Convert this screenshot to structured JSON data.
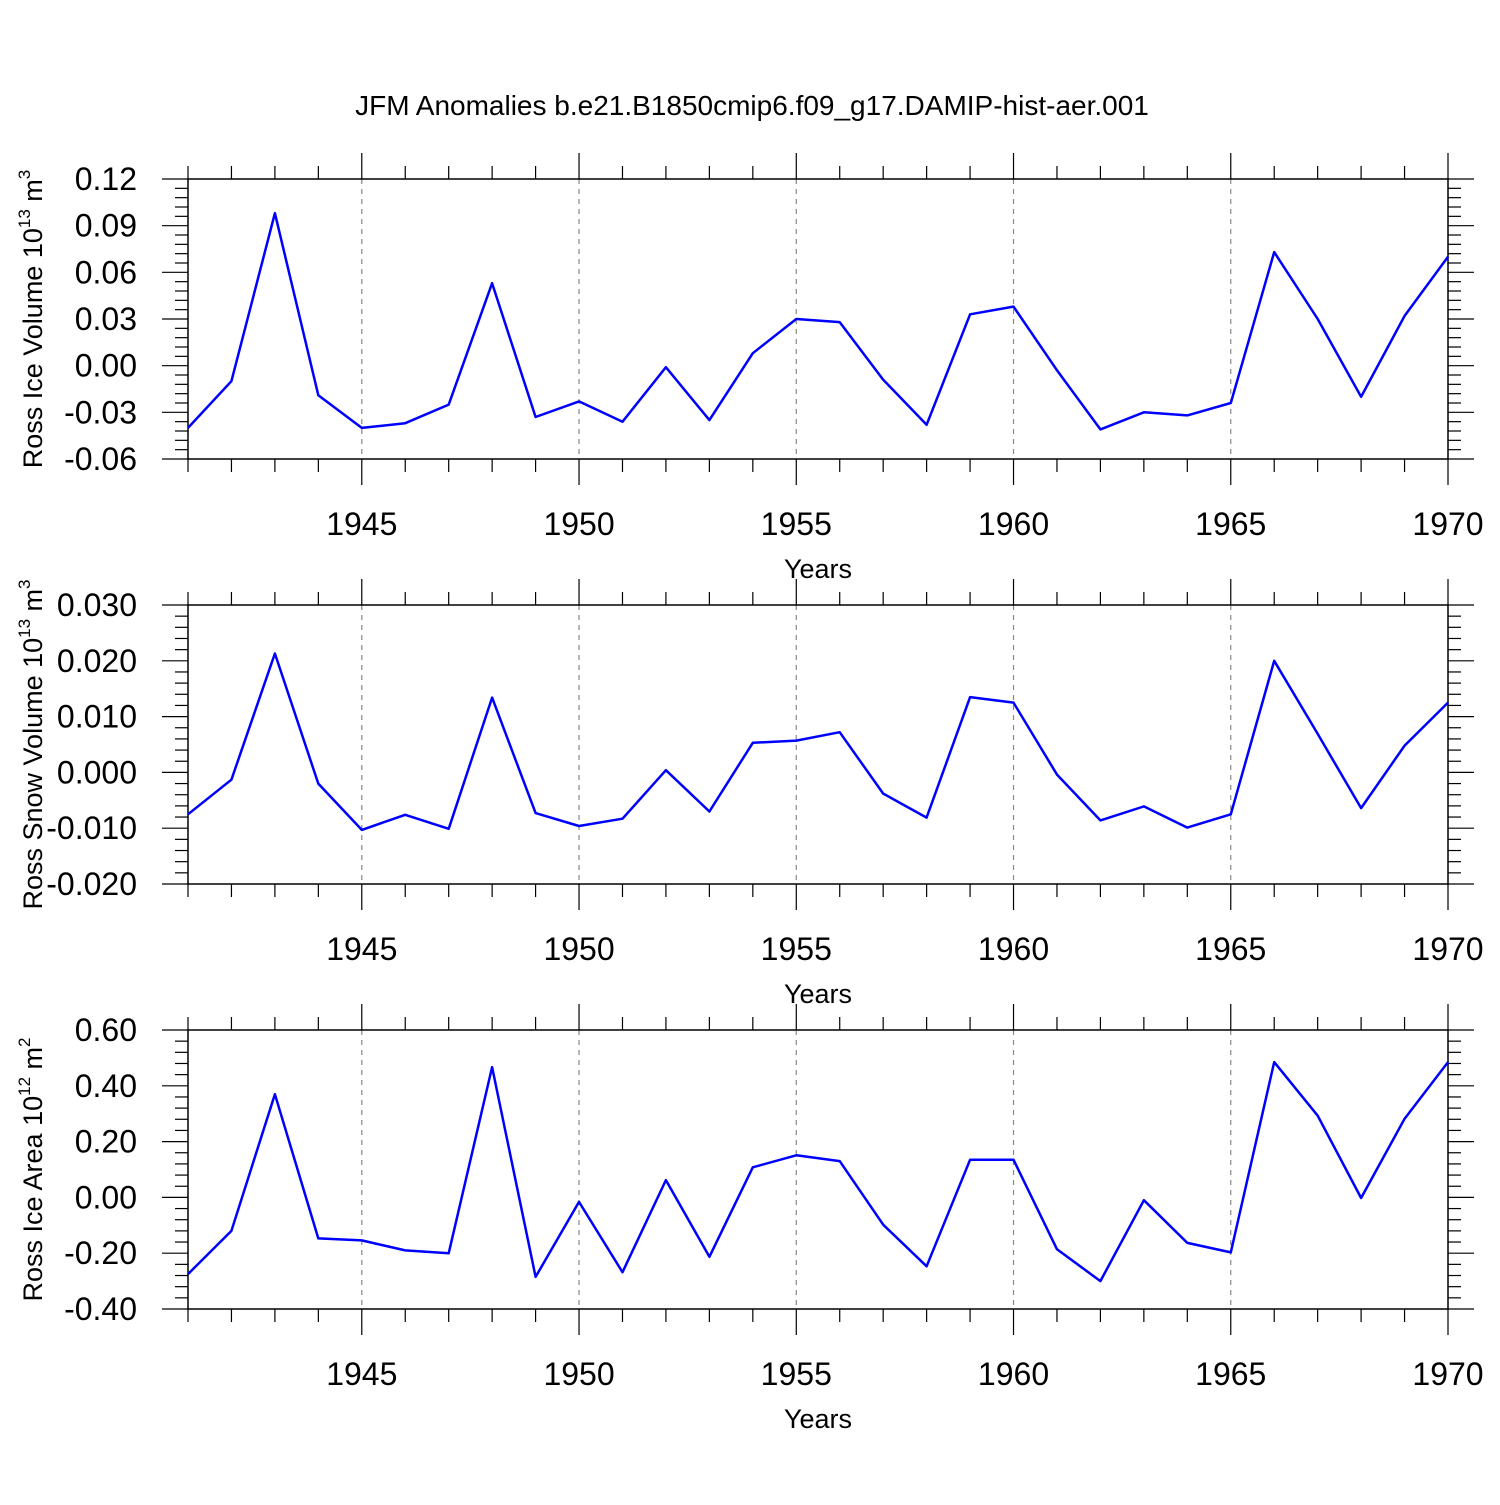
{
  "title": "JFM Anomalies b.e21.B1850cmip6.f09_g17.DAMIP-hist-aer.001",
  "line_color": "#0000ff",
  "chart_data": [
    {
      "type": "line",
      "ylabel": "Ross Ice Volume 10",
      "ylabel_exp": "13",
      "ylabel_unit": "m",
      "ylabel_unit_exp": "3",
      "xlabel": "Years",
      "xlim": [
        1941,
        1970
      ],
      "ylim": [
        -0.06,
        0.12
      ],
      "yticks": [
        -0.06,
        -0.03,
        0.0,
        0.03,
        0.06,
        0.09,
        0.12
      ],
      "ytick_labels": [
        "-0.06",
        "-0.03",
        "0.00",
        "0.03",
        "0.06",
        "0.09",
        "0.12"
      ],
      "xticks": [
        1945,
        1950,
        1955,
        1960,
        1965,
        1970
      ],
      "xtick_labels": [
        "1945",
        "1950",
        "1955",
        "1960",
        "1965",
        "1970"
      ],
      "x": [
        1941,
        1942,
        1943,
        1944,
        1945,
        1946,
        1947,
        1948,
        1949,
        1950,
        1951,
        1952,
        1953,
        1954,
        1955,
        1956,
        1957,
        1958,
        1959,
        1960,
        1961,
        1962,
        1963,
        1964,
        1965,
        1966,
        1967,
        1968,
        1969,
        1970
      ],
      "y": [
        -0.04,
        -0.01,
        0.098,
        -0.019,
        -0.04,
        -0.037,
        -0.025,
        0.053,
        -0.033,
        -0.023,
        -0.036,
        -0.001,
        -0.035,
        0.008,
        0.03,
        0.028,
        -0.009,
        -0.038,
        0.033,
        0.038,
        -0.003,
        -0.041,
        -0.03,
        -0.032,
        -0.024,
        0.073,
        0.03,
        -0.02,
        0.032,
        0.07
      ]
    },
    {
      "type": "line",
      "ylabel": "Ross Snow Volume 10",
      "ylabel_exp": "13",
      "ylabel_unit": "m",
      "ylabel_unit_exp": "3",
      "xlabel": "Years",
      "xlim": [
        1941,
        1970
      ],
      "ylim": [
        -0.02,
        0.03
      ],
      "yticks": [
        -0.02,
        -0.01,
        0.0,
        0.01,
        0.02,
        0.03
      ],
      "ytick_labels": [
        "-0.020",
        "-0.010",
        "0.000",
        "0.010",
        "0.020",
        "0.030"
      ],
      "xticks": [
        1945,
        1950,
        1955,
        1960,
        1965,
        1970
      ],
      "xtick_labels": [
        "1945",
        "1950",
        "1955",
        "1960",
        "1965",
        "1970"
      ],
      "x": [
        1941,
        1942,
        1943,
        1944,
        1945,
        1946,
        1947,
        1948,
        1949,
        1950,
        1951,
        1952,
        1953,
        1954,
        1955,
        1956,
        1957,
        1958,
        1959,
        1960,
        1961,
        1962,
        1963,
        1964,
        1965,
        1966,
        1967,
        1968,
        1969,
        1970
      ],
      "y": [
        -0.0075,
        -0.0013,
        0.0213,
        -0.002,
        -0.0103,
        -0.0076,
        -0.0101,
        0.0134,
        -0.0073,
        -0.0096,
        -0.0083,
        0.0004,
        -0.007,
        0.0053,
        0.0057,
        0.0072,
        -0.0038,
        -0.0081,
        0.0135,
        0.0125,
        -0.0004,
        -0.0086,
        -0.0061,
        -0.0099,
        -0.0075,
        0.02,
        0.0069,
        -0.0064,
        0.0048,
        0.0125
      ]
    },
    {
      "type": "line",
      "ylabel": "Ross Ice Area 10",
      "ylabel_exp": "12",
      "ylabel_unit": "m",
      "ylabel_unit_exp": "2",
      "xlabel": "Years",
      "xlim": [
        1941,
        1970
      ],
      "ylim": [
        -0.4,
        0.6
      ],
      "yticks": [
        -0.4,
        -0.2,
        0.0,
        0.2,
        0.4,
        0.6
      ],
      "ytick_labels": [
        "-0.40",
        "-0.20",
        "0.00",
        "0.20",
        "0.40",
        "0.60"
      ],
      "xticks": [
        1945,
        1950,
        1955,
        1960,
        1965,
        1970
      ],
      "xtick_labels": [
        "1945",
        "1950",
        "1955",
        "1960",
        "1965",
        "1970"
      ],
      "x": [
        1941,
        1942,
        1943,
        1944,
        1945,
        1946,
        1947,
        1948,
        1949,
        1950,
        1951,
        1952,
        1953,
        1954,
        1955,
        1956,
        1957,
        1958,
        1959,
        1960,
        1961,
        1962,
        1963,
        1964,
        1965,
        1966,
        1967,
        1968,
        1969,
        1970
      ],
      "y": [
        -0.275,
        -0.12,
        0.37,
        -0.147,
        -0.154,
        -0.19,
        -0.2,
        0.467,
        -0.285,
        -0.016,
        -0.268,
        0.062,
        -0.213,
        0.108,
        0.151,
        0.13,
        -0.098,
        -0.247,
        0.135,
        0.135,
        -0.186,
        -0.3,
        -0.01,
        -0.163,
        -0.197,
        0.485,
        0.293,
        -0.002,
        0.282,
        0.485
      ]
    }
  ]
}
